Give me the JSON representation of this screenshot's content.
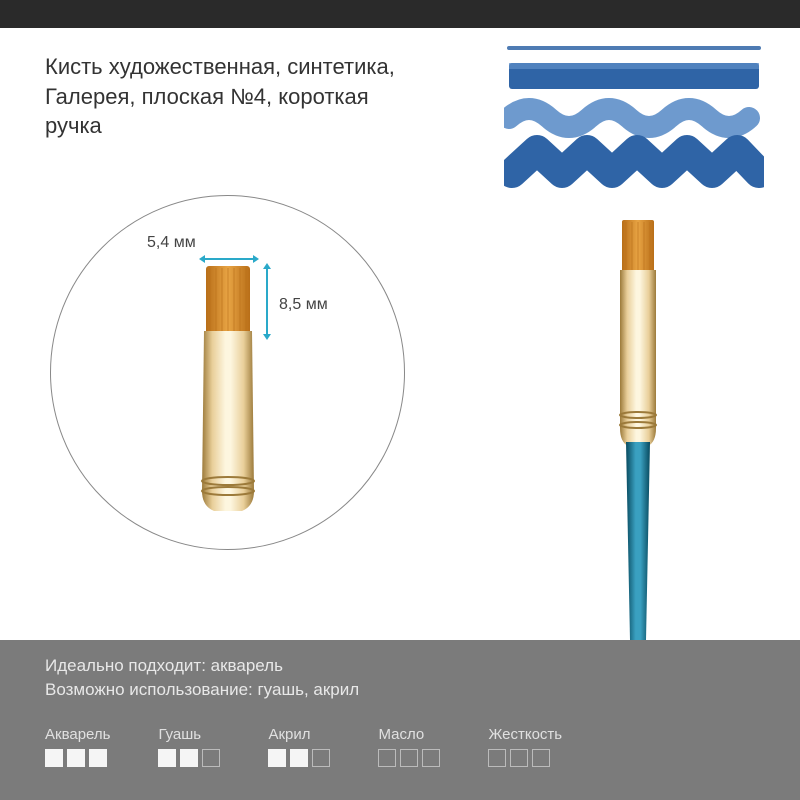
{
  "colors": {
    "stroke_blue": "#2f64a6",
    "stroke_blue_light": "#5e8fc9",
    "bristle_orange": "#d88a2a",
    "bristle_dark": "#b86e18",
    "ferrule_gold": "#e9cf9a",
    "ferrule_highlight": "#fdf6df",
    "ferrule_shadow": "#9c7a3a",
    "handle_blue": "#0e6d8e",
    "handle_highlight": "#3aa0c0",
    "panel_bg": "#7b7b7b",
    "arrow": "#2aa9c9",
    "top_bar": "#2a2a2a"
  },
  "title": "Кисть художественная, синтетика, Галерея, плоская №4, короткая ручка",
  "dimensions": {
    "width_label": "5,4 мм",
    "height_label": "8,5 мм"
  },
  "info": {
    "ideal": "Идеально подходит: акварель",
    "possible": "Возможно использование: гуашь, акрил"
  },
  "ratings": [
    {
      "label": "Акварель",
      "filled": 3,
      "total": 3
    },
    {
      "label": "Гуашь",
      "filled": 2,
      "total": 3
    },
    {
      "label": "Акрил",
      "filled": 2,
      "total": 3
    },
    {
      "label": "Масло",
      "filled": 0,
      "total": 3
    },
    {
      "label": "Жесткость",
      "filled": 0,
      "total": 3
    }
  ]
}
